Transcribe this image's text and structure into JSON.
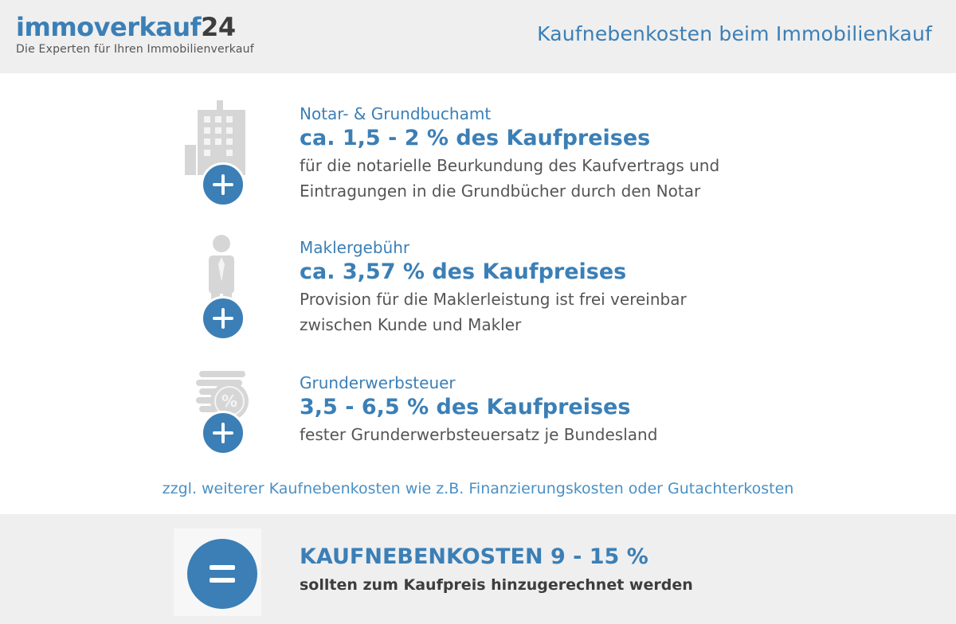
{
  "header": {
    "logo_name": "immoverkauf",
    "logo_number": "24",
    "logo_tagline": "Die Experten für Ihren Immobilienverkauf",
    "title": "Kaufnebenkosten beim Immobilienkauf"
  },
  "items": [
    {
      "category": "Notar- & Grundbuchamt",
      "headline": "ca. 1,5 - 2 % des Kaufpreises",
      "desc_line1": "für die notarielle Beurkundung des Kaufvertrags und",
      "desc_line2": "Eintragungen in die Grundbücher durch den Notar",
      "icon": "building-icon"
    },
    {
      "category": "Maklergebühr",
      "headline": "ca. 3,57 % des Kaufpreises",
      "desc_line1": "Provision für die Maklerleistung ist frei vereinbar",
      "desc_line2": "zwischen Kunde und Makler",
      "icon": "person-icon"
    },
    {
      "category": "Grunderwerbsteuer",
      "headline": "3,5 - 6,5 % des Kaufpreises",
      "desc_line1": "fester Grunderwerbsteuersatz je Bundesland",
      "icon": "coins-percent-icon",
      "percent_symbol": "%"
    }
  ],
  "note": "zzgl. weiterer Kaufnebenkosten wie z.B. Finanzierungskosten oder Gutachterkosten",
  "summary": {
    "title": "KAUFNEBENKOSTEN 9 - 15 %",
    "subtitle": "sollten zum Kaufpreis hinzugerechnet werden"
  },
  "colors": {
    "accent": "#3b7fb6",
    "text": "#555555",
    "panel": "#efefef",
    "icon_gray": "#d6d6d6"
  }
}
